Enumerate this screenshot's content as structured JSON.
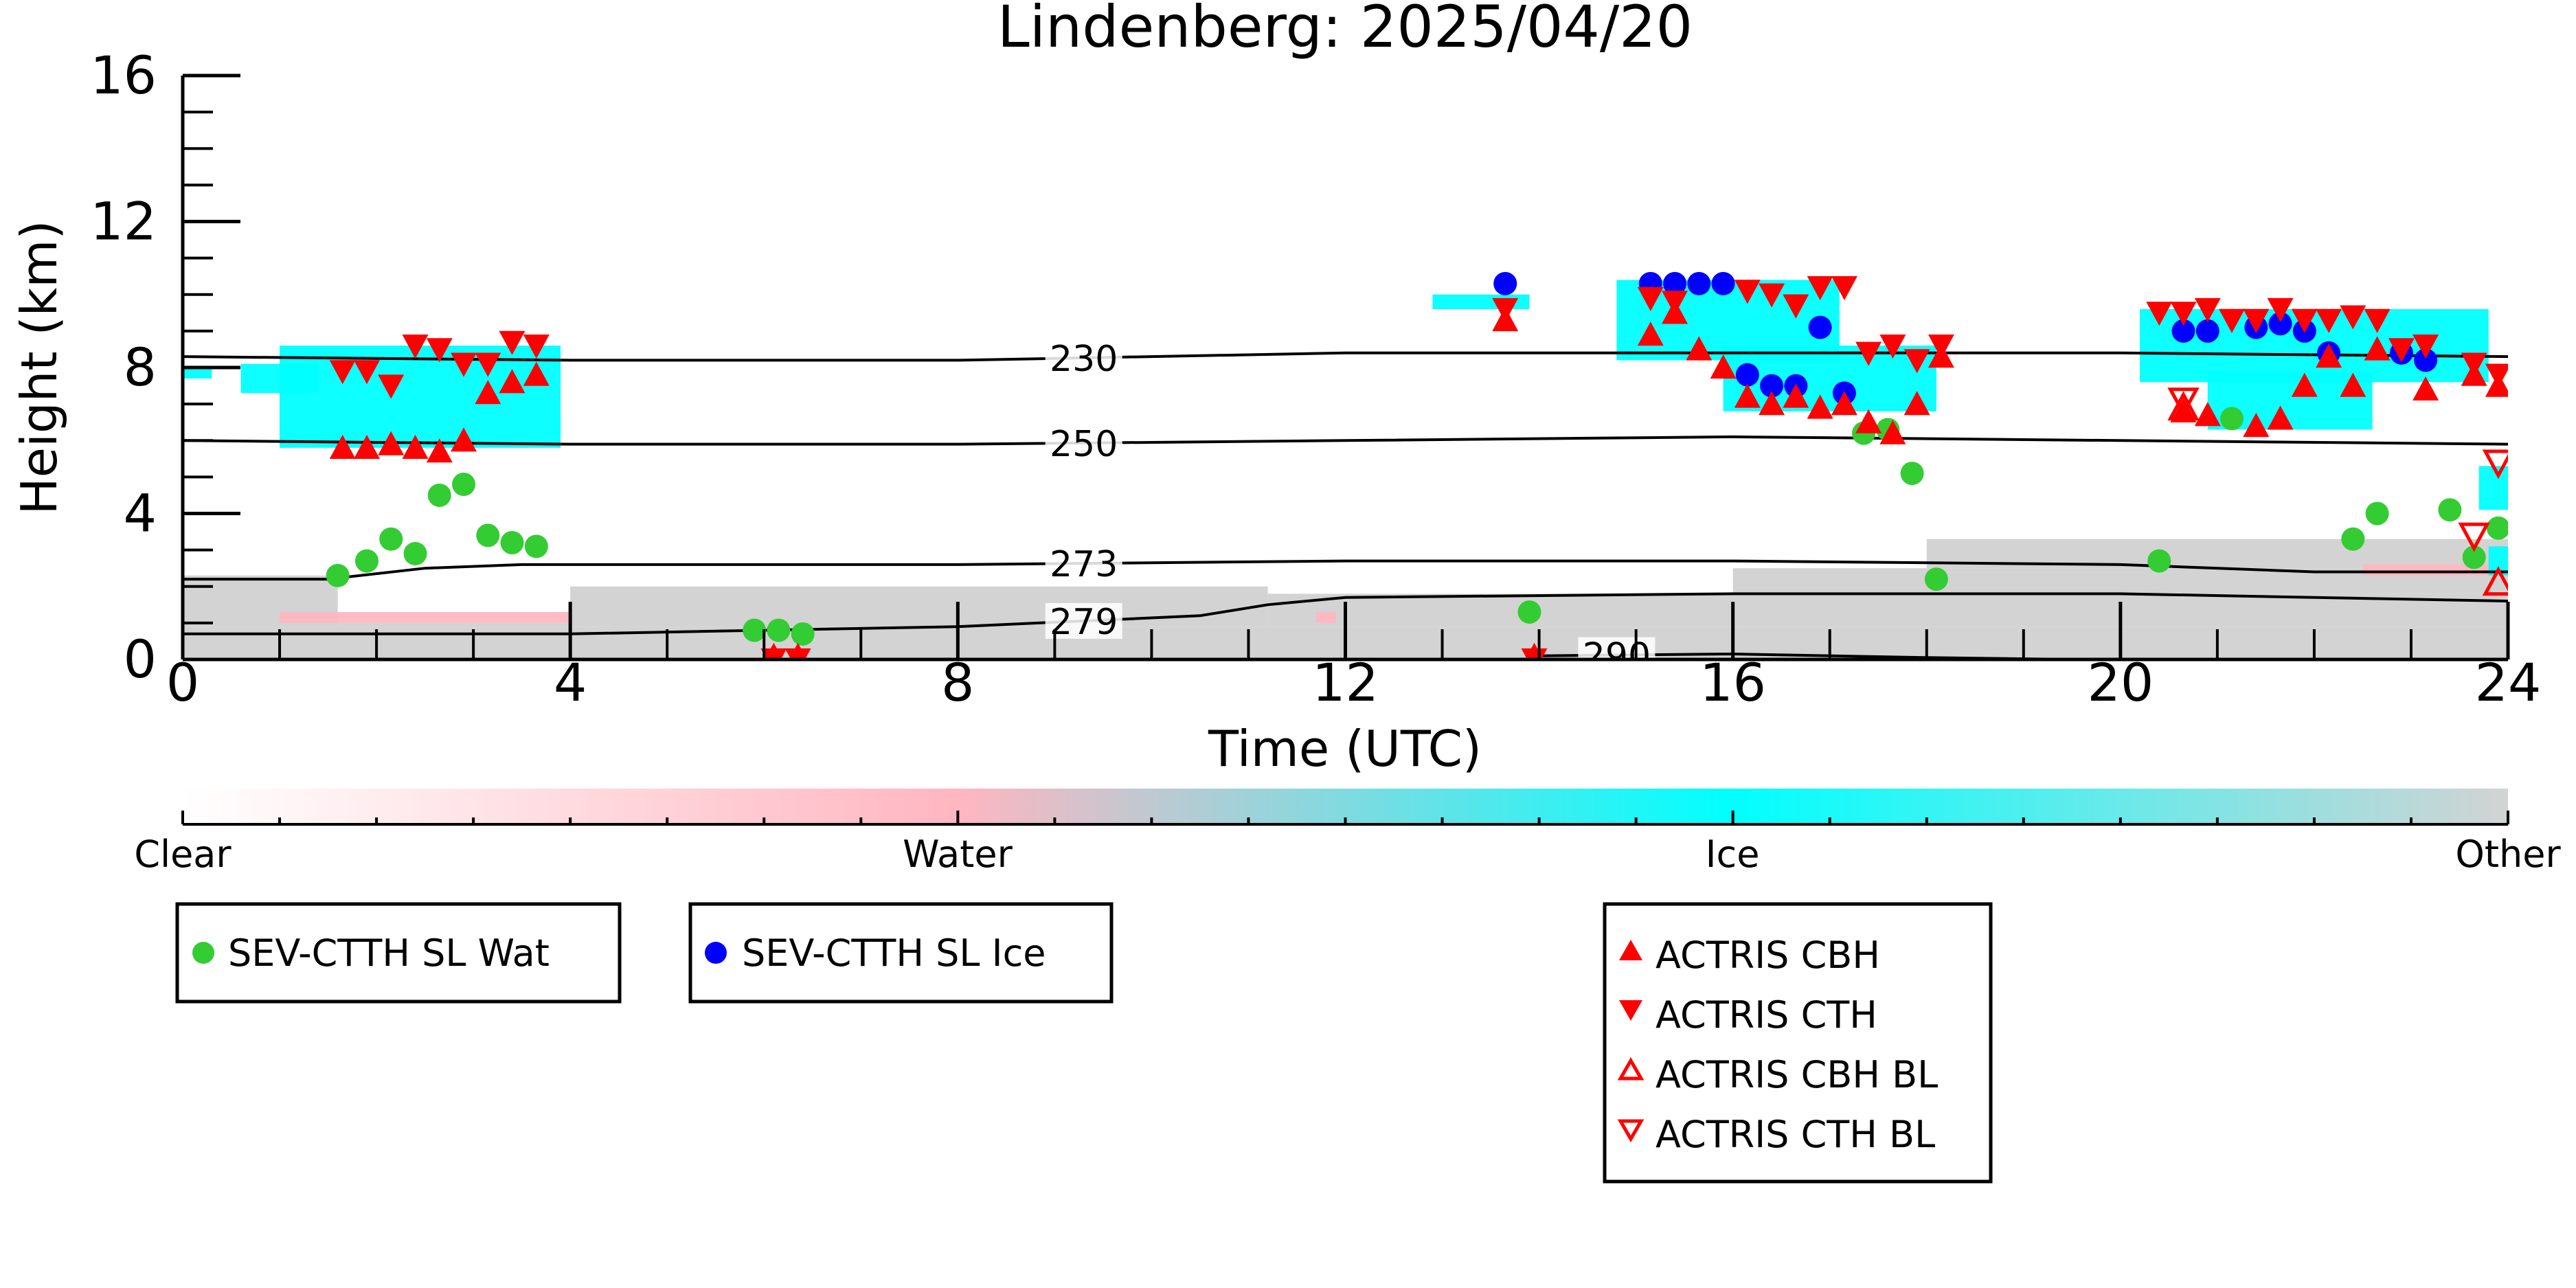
{
  "chart_data": {
    "type": "scatter",
    "title": "Lindenberg: 2025/04/20",
    "xlabel": "Time (UTC)",
    "ylabel": "Height (km)",
    "xlim": [
      0,
      24
    ],
    "ylim": [
      0,
      16
    ],
    "x_ticks": [
      "0",
      "4",
      "8",
      "12",
      "16",
      "20",
      "24"
    ],
    "y_ticks": [
      "0",
      "4",
      "8",
      "12",
      "16"
    ],
    "grid": false,
    "colors": {
      "ice": "#00ffff",
      "water": "#ffb6c1",
      "other": "#d3d3d3",
      "wat_marker": "#33cc33",
      "ice_marker": "#0000ff",
      "actris": "#ff0000"
    },
    "colorbar": {
      "labels": [
        "Clear",
        "Water",
        "Ice",
        "Other"
      ],
      "stops": [
        "#ffffff",
        "#ffb6c1",
        "#00ffff",
        "#d3d3d3"
      ]
    },
    "isotherms": [
      {
        "label": "230",
        "label_x": 9.3,
        "points": [
          [
            0,
            8.3
          ],
          [
            4,
            8.2
          ],
          [
            8,
            8.2
          ],
          [
            12,
            8.4
          ],
          [
            16,
            8.4
          ],
          [
            20,
            8.4
          ],
          [
            24,
            8.3
          ]
        ]
      },
      {
        "label": "250",
        "label_x": 9.3,
        "points": [
          [
            0,
            6.0
          ],
          [
            4,
            5.9
          ],
          [
            8,
            5.9
          ],
          [
            12,
            6.0
          ],
          [
            16,
            6.1
          ],
          [
            20,
            6.0
          ],
          [
            24,
            5.9
          ]
        ]
      },
      {
        "label": "273",
        "label_x": 9.3,
        "points": [
          [
            0,
            2.2
          ],
          [
            1.5,
            2.2
          ],
          [
            2.5,
            2.5
          ],
          [
            3.5,
            2.6
          ],
          [
            8,
            2.6
          ],
          [
            12,
            2.7
          ],
          [
            16,
            2.7
          ],
          [
            20,
            2.6
          ],
          [
            22,
            2.4
          ],
          [
            24,
            2.4
          ]
        ]
      },
      {
        "label": "279",
        "label_x": 9.3,
        "points": [
          [
            0,
            0.7
          ],
          [
            4,
            0.7
          ],
          [
            8,
            0.9
          ],
          [
            10.5,
            1.2
          ],
          [
            11.2,
            1.5
          ],
          [
            12,
            1.7
          ],
          [
            16,
            1.8
          ],
          [
            20,
            1.8
          ],
          [
            24,
            1.6
          ]
        ]
      },
      {
        "label": "290",
        "label_x": 14.8,
        "points": [
          [
            14,
            0.1
          ],
          [
            16,
            0.15
          ],
          [
            18,
            0.05
          ],
          [
            19.5,
            0.0
          ]
        ]
      }
    ],
    "cloud_regions": [
      {
        "type": "ice",
        "x": 1.0,
        "x2": 3.9,
        "y": 5.8,
        "y2": 8.6
      },
      {
        "type": "ice",
        "x": 0.6,
        "x2": 1.4,
        "y": 7.3,
        "y2": 8.1
      },
      {
        "type": "ice",
        "x": 0.0,
        "x2": 0.3,
        "y": 7.7,
        "y2": 8.0
      },
      {
        "type": "ice",
        "x": 12.9,
        "x2": 13.9,
        "y": 9.6,
        "y2": 10.0
      },
      {
        "type": "ice",
        "x": 14.8,
        "x2": 17.1,
        "y": 8.2,
        "y2": 10.4
      },
      {
        "type": "ice",
        "x": 15.9,
        "x2": 18.1,
        "y": 6.8,
        "y2": 8.6
      },
      {
        "type": "ice",
        "x": 20.2,
        "x2": 23.8,
        "y": 7.6,
        "y2": 9.6
      },
      {
        "type": "ice",
        "x": 20.9,
        "x2": 22.6,
        "y": 6.3,
        "y2": 7.9
      },
      {
        "type": "ice",
        "x": 23.7,
        "x2": 24.0,
        "y": 4.1,
        "y2": 5.3
      },
      {
        "type": "ice",
        "x": 23.8,
        "x2": 24.0,
        "y": 2.3,
        "y2": 3.1
      },
      {
        "type": "water",
        "x": 1.0,
        "x2": 4.0,
        "y": 1.0,
        "y2": 1.3
      },
      {
        "type": "water",
        "x": 11.7,
        "x2": 11.9,
        "y": 1.0,
        "y2": 1.3
      },
      {
        "type": "water",
        "x": 22.5,
        "x2": 24.0,
        "y": 2.3,
        "y2": 2.6
      },
      {
        "type": "other",
        "x": 0.0,
        "x2": 24.0,
        "y": 0.0,
        "y2": 0.9
      },
      {
        "type": "other",
        "x": 0.0,
        "x2": 1.6,
        "y": 0.9,
        "y2": 2.3
      },
      {
        "type": "other",
        "x": 1.6,
        "x2": 4.0,
        "y": 0.9,
        "y2": 1.0
      },
      {
        "type": "other",
        "x": 4.0,
        "x2": 11.2,
        "y": 0.9,
        "y2": 2.0
      },
      {
        "type": "other",
        "x": 11.2,
        "x2": 24.0,
        "y": 0.9,
        "y2": 1.8
      },
      {
        "type": "other",
        "x": 16.0,
        "x2": 24.0,
        "y": 1.8,
        "y2": 2.5
      },
      {
        "type": "other",
        "x": 18.0,
        "x2": 24.0,
        "y": 2.5,
        "y2": 3.3
      }
    ],
    "series": [
      {
        "name": "SEV-CTTH SL Wat",
        "marker": "circle",
        "color": "#33cc33",
        "points": [
          [
            1.6,
            2.3
          ],
          [
            1.9,
            2.7
          ],
          [
            2.15,
            3.3
          ],
          [
            2.4,
            2.9
          ],
          [
            2.65,
            4.5
          ],
          [
            2.9,
            4.8
          ],
          [
            3.15,
            3.4
          ],
          [
            3.4,
            3.2
          ],
          [
            3.65,
            3.1
          ],
          [
            5.9,
            0.8
          ],
          [
            6.15,
            0.8
          ],
          [
            6.4,
            0.7
          ],
          [
            13.9,
            1.3
          ],
          [
            17.35,
            6.2
          ],
          [
            17.6,
            6.3
          ],
          [
            17.85,
            5.1
          ],
          [
            18.1,
            2.2
          ],
          [
            20.4,
            2.7
          ],
          [
            21.15,
            6.6
          ],
          [
            22.4,
            3.3
          ],
          [
            22.65,
            4.0
          ],
          [
            23.4,
            4.1
          ],
          [
            23.65,
            2.8
          ],
          [
            23.9,
            3.6
          ]
        ]
      },
      {
        "name": "SEV-CTTH SL Ice",
        "marker": "circle",
        "color": "#0000ff",
        "points": [
          [
            13.65,
            10.3
          ],
          [
            15.15,
            10.3
          ],
          [
            15.4,
            10.3
          ],
          [
            15.65,
            10.3
          ],
          [
            15.9,
            10.3
          ],
          [
            16.15,
            7.8
          ],
          [
            16.4,
            7.5
          ],
          [
            16.65,
            7.5
          ],
          [
            16.9,
            9.1
          ],
          [
            17.15,
            7.3
          ],
          [
            20.65,
            9.0
          ],
          [
            20.9,
            9.0
          ],
          [
            21.4,
            9.1
          ],
          [
            21.65,
            9.2
          ],
          [
            21.9,
            9.0
          ],
          [
            22.15,
            8.4
          ],
          [
            22.9,
            8.4
          ],
          [
            23.15,
            8.2
          ]
        ]
      },
      {
        "name": "ACTRIS CBH",
        "marker": "triangle-up",
        "color": "#ff0000",
        "points": [
          [
            1.65,
            5.8
          ],
          [
            1.9,
            5.8
          ],
          [
            2.15,
            5.9
          ],
          [
            2.4,
            5.8
          ],
          [
            2.65,
            5.7
          ],
          [
            2.9,
            6.0
          ],
          [
            3.15,
            7.3
          ],
          [
            3.4,
            7.6
          ],
          [
            3.65,
            7.8
          ],
          [
            6.1,
            0.1
          ],
          [
            6.35,
            0.1
          ],
          [
            13.65,
            9.3
          ],
          [
            13.95,
            0.1
          ],
          [
            15.15,
            8.9
          ],
          [
            15.4,
            9.5
          ],
          [
            15.65,
            8.5
          ],
          [
            15.9,
            8.0
          ],
          [
            16.15,
            7.2
          ],
          [
            16.4,
            7.0
          ],
          [
            16.65,
            7.2
          ],
          [
            16.9,
            6.9
          ],
          [
            17.15,
            7.0
          ],
          [
            17.4,
            6.5
          ],
          [
            17.65,
            6.2
          ],
          [
            17.9,
            7.0
          ],
          [
            18.15,
            8.3
          ],
          [
            20.65,
            6.8
          ],
          [
            20.9,
            6.7
          ],
          [
            21.4,
            6.4
          ],
          [
            21.65,
            6.6
          ],
          [
            21.9,
            7.5
          ],
          [
            22.15,
            8.3
          ],
          [
            22.4,
            7.5
          ],
          [
            22.65,
            8.5
          ],
          [
            23.15,
            7.4
          ],
          [
            23.65,
            7.8
          ],
          [
            23.9,
            7.5
          ]
        ]
      },
      {
        "name": "ACTRIS CTH",
        "marker": "triangle-down",
        "color": "#ff0000",
        "points": [
          [
            1.65,
            7.9
          ],
          [
            1.9,
            7.9
          ],
          [
            2.15,
            7.5
          ],
          [
            2.4,
            8.6
          ],
          [
            2.65,
            8.5
          ],
          [
            2.9,
            8.1
          ],
          [
            3.15,
            8.1
          ],
          [
            3.4,
            8.7
          ],
          [
            3.65,
            8.6
          ],
          [
            6.1,
            0.0
          ],
          [
            6.35,
            0.0
          ],
          [
            13.65,
            9.6
          ],
          [
            13.95,
            0.0
          ],
          [
            15.15,
            9.9
          ],
          [
            15.4,
            9.8
          ],
          [
            16.15,
            10.1
          ],
          [
            16.4,
            10.0
          ],
          [
            16.65,
            9.7
          ],
          [
            16.9,
            10.2
          ],
          [
            17.15,
            10.2
          ],
          [
            17.4,
            8.4
          ],
          [
            17.65,
            8.6
          ],
          [
            17.9,
            8.2
          ],
          [
            18.15,
            8.6
          ],
          [
            20.4,
            9.5
          ],
          [
            20.65,
            9.5
          ],
          [
            20.9,
            9.6
          ],
          [
            21.15,
            9.3
          ],
          [
            21.4,
            9.3
          ],
          [
            21.65,
            9.6
          ],
          [
            21.9,
            9.3
          ],
          [
            22.15,
            9.3
          ],
          [
            22.4,
            9.4
          ],
          [
            22.65,
            9.3
          ],
          [
            22.9,
            8.5
          ],
          [
            23.15,
            8.6
          ],
          [
            23.65,
            8.1
          ],
          [
            23.9,
            7.8
          ]
        ]
      },
      {
        "name": "ACTRIS CBH BL",
        "marker": "triangle-up-open",
        "color": "#ff0000",
        "points": [
          [
            20.65,
            6.9
          ],
          [
            23.9,
            2.1
          ]
        ]
      },
      {
        "name": "ACTRIS CTH BL",
        "marker": "triangle-down-open",
        "color": "#ff0000",
        "points": [
          [
            20.65,
            7.1
          ],
          [
            23.65,
            3.4
          ],
          [
            23.9,
            5.4
          ]
        ]
      }
    ]
  },
  "legends": [
    {
      "id": "legend-wat",
      "entries": [
        {
          "label": "SEV-CTTH SL Wat",
          "marker": "circle",
          "color": "#33cc33"
        }
      ]
    },
    {
      "id": "legend-ice",
      "entries": [
        {
          "label": "SEV-CTTH SL Ice",
          "marker": "circle",
          "color": "#0000ff"
        }
      ]
    },
    {
      "id": "legend-actris",
      "entries": [
        {
          "label": "ACTRIS CBH",
          "marker": "triangle-up",
          "color": "#ff0000"
        },
        {
          "label": "ACTRIS CTH",
          "marker": "triangle-down",
          "color": "#ff0000"
        },
        {
          "label": "ACTRIS CBH BL",
          "marker": "triangle-up-open",
          "color": "#ff0000"
        },
        {
          "label": "ACTRIS CTH BL",
          "marker": "triangle-down-open",
          "color": "#ff0000"
        }
      ]
    }
  ]
}
